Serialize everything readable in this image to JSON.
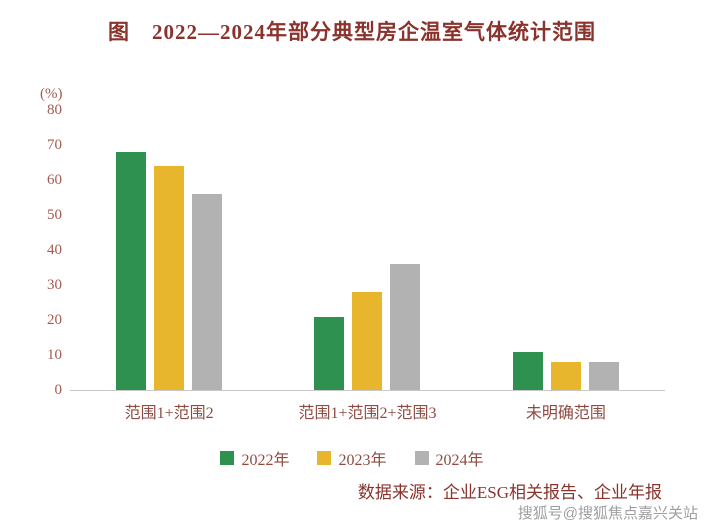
{
  "title": "图　2022—2024年部分典型房企温室气体统计范围",
  "source_text": "数据来源：企业ESG相关报告、企业年报",
  "watermark": "搜狐号@搜狐焦点嘉兴关站",
  "colors": {
    "title_text": "#8a332c",
    "axis_text": "#a35a50",
    "label_text": "#8f4b41",
    "series_2022": "#2e9150",
    "series_2023": "#e8b62d",
    "series_2024": "#b2b2b2"
  },
  "chart_data": {
    "type": "bar",
    "title": "图　2022—2024年部分典型房企温室气体统计范围",
    "categories": [
      "范围1+范围2",
      "范围1+范围2+范围3",
      "未明确范围"
    ],
    "series": [
      {
        "name": "2022年",
        "color": "#2e9150",
        "values": [
          68,
          21,
          11
        ]
      },
      {
        "name": "2023年",
        "color": "#e8b62d",
        "values": [
          64,
          28,
          8
        ]
      },
      {
        "name": "2024年",
        "color": "#b2b2b2",
        "values": [
          56,
          36,
          8
        ]
      }
    ],
    "xlabel": "",
    "ylabel": "(%)",
    "ylim": [
      0,
      80
    ],
    "ytick": 10,
    "grid": false,
    "legend_position": "bottom"
  }
}
